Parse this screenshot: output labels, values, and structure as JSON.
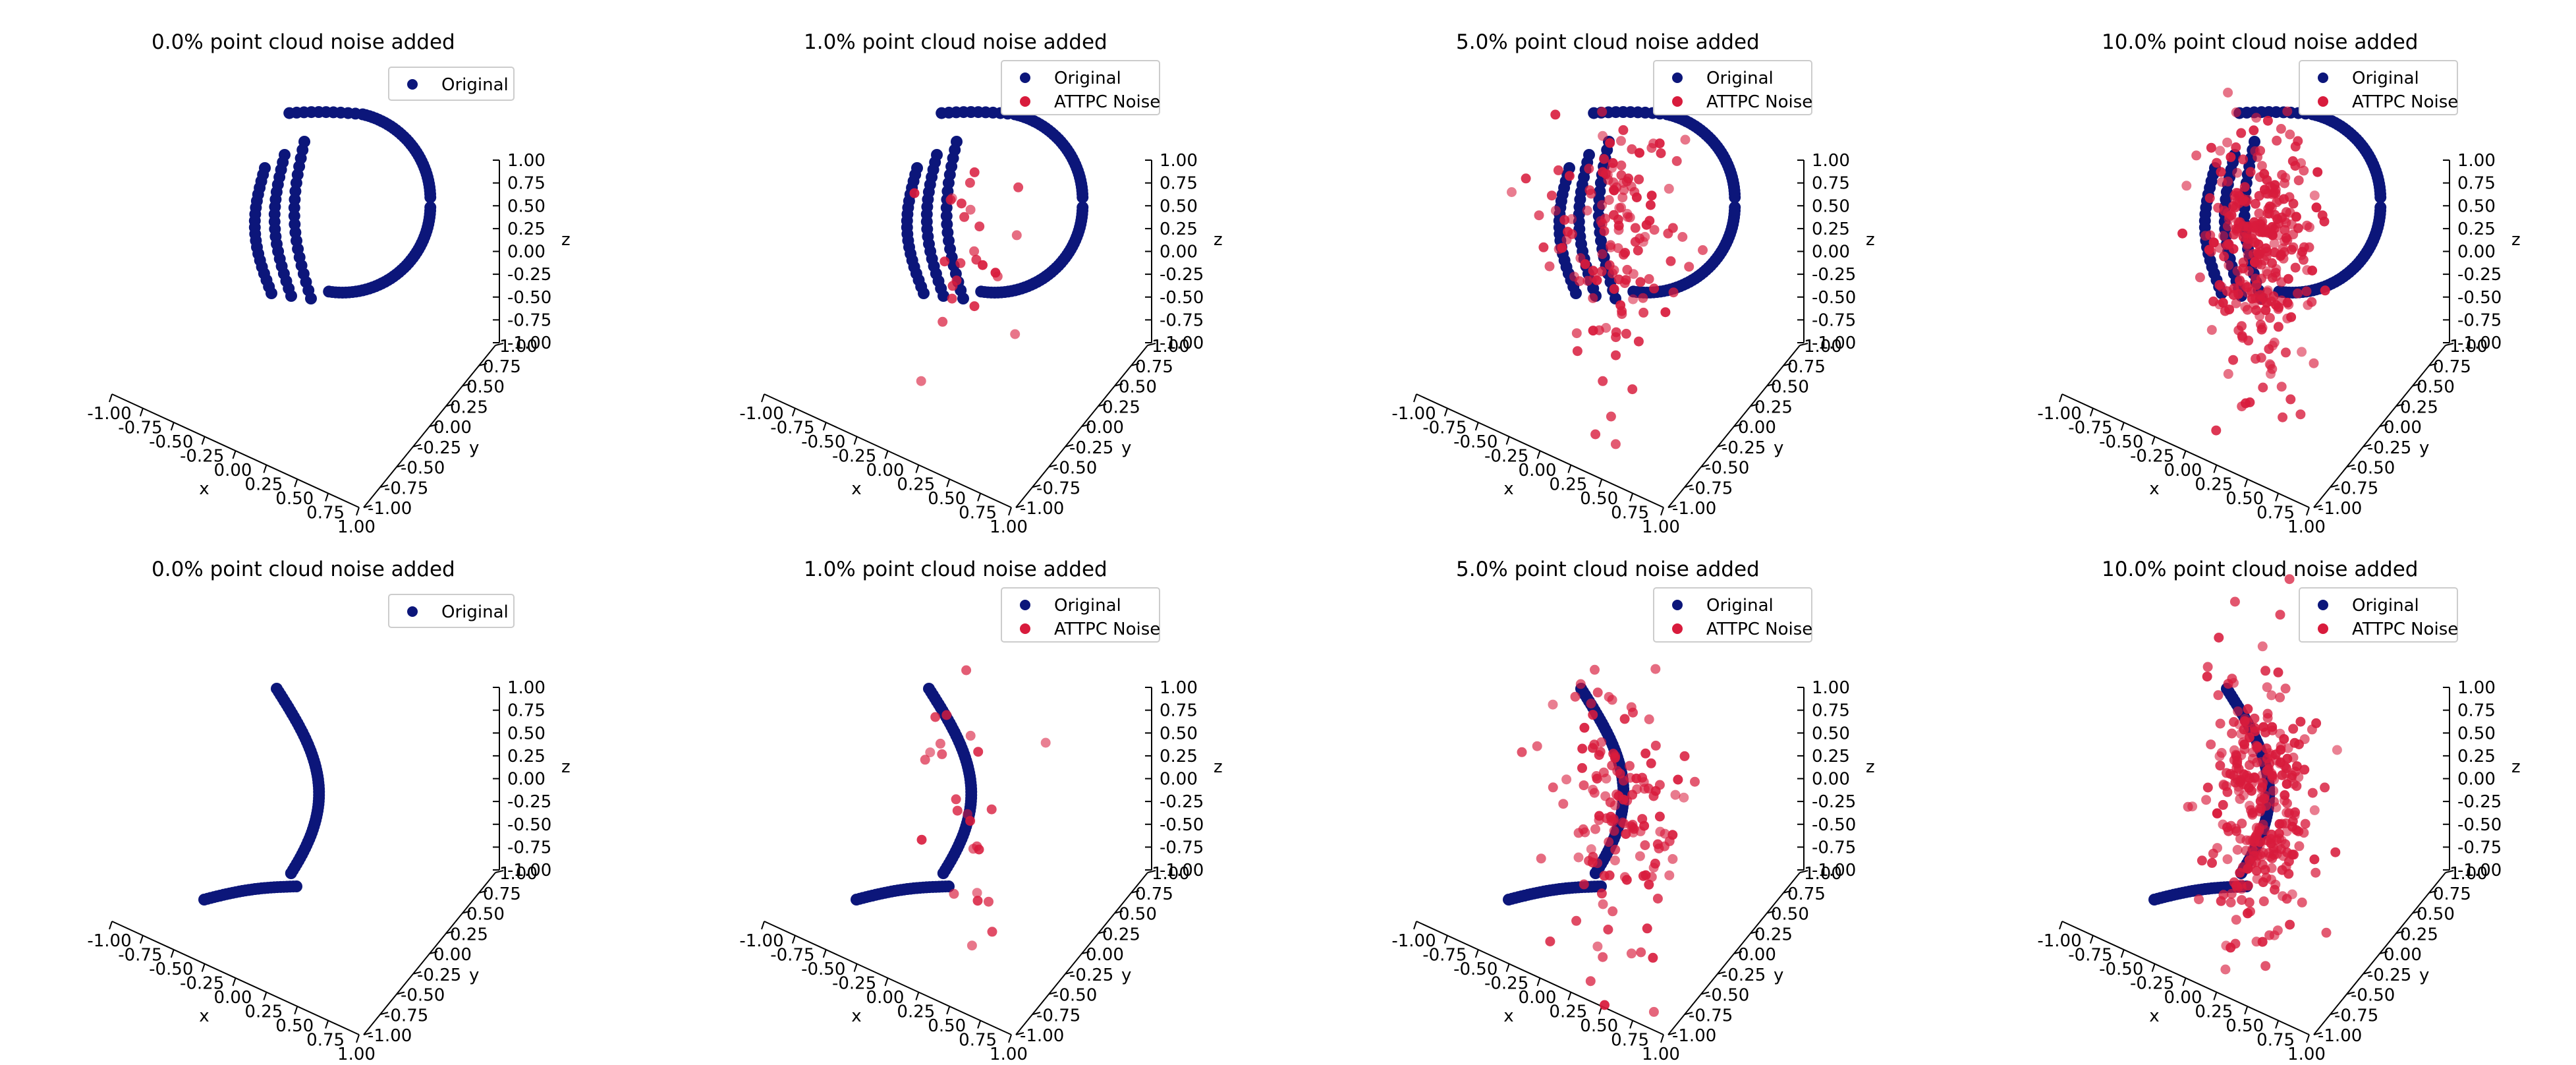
{
  "chart_data": [
    {
      "type": "scatter3d",
      "title": "0.0% point cloud noise added",
      "xlabel": "x",
      "ylabel": "y",
      "zlabel": "z",
      "xlim": [
        -1,
        1
      ],
      "ylim": [
        -1,
        1
      ],
      "zlim": [
        -1,
        1
      ],
      "ticks": [
        "-1.00",
        "-0.75",
        "-0.50",
        "-0.25",
        "0.00",
        "0.25",
        "0.50",
        "0.75",
        "1.00"
      ],
      "track_shape": "loop",
      "noise_fraction": 0.0,
      "legend": [
        "Original"
      ],
      "legend_position": "upper-right",
      "series": [
        {
          "name": "Original",
          "color": "#0c167a",
          "n_points": 150
        },
        {
          "name": "ATTPC Noise",
          "color": "#d81b3c",
          "n_points": 0
        }
      ]
    },
    {
      "type": "scatter3d",
      "title": "1.0% point cloud noise added",
      "xlabel": "x",
      "ylabel": "y",
      "zlabel": "z",
      "xlim": [
        -1,
        1
      ],
      "ylim": [
        -1,
        1
      ],
      "zlim": [
        -1,
        1
      ],
      "ticks": [
        "-1.00",
        "-0.75",
        "-0.50",
        "-0.25",
        "0.00",
        "0.25",
        "0.50",
        "0.75",
        "1.00"
      ],
      "track_shape": "loop",
      "noise_fraction": 0.01,
      "legend": [
        "Original",
        "ATTPC Noise"
      ],
      "legend_position": "upper-right",
      "series": [
        {
          "name": "Original",
          "color": "#0c167a",
          "n_points": 150
        },
        {
          "name": "ATTPC Noise",
          "color": "#d81b3c",
          "n_points": 25
        }
      ]
    },
    {
      "type": "scatter3d",
      "title": "5.0% point cloud noise added",
      "xlabel": "x",
      "ylabel": "y",
      "zlabel": "z",
      "xlim": [
        -1,
        1
      ],
      "ylim": [
        -1,
        1
      ],
      "zlim": [
        -1,
        1
      ],
      "ticks": [
        "-1.00",
        "-0.75",
        "-0.50",
        "-0.25",
        "0.00",
        "0.25",
        "0.50",
        "0.75",
        "1.00"
      ],
      "track_shape": "loop",
      "noise_fraction": 0.05,
      "legend": [
        "Original",
        "ATTPC Noise"
      ],
      "legend_position": "upper-right",
      "series": [
        {
          "name": "Original",
          "color": "#0c167a",
          "n_points": 150
        },
        {
          "name": "ATTPC Noise",
          "color": "#d81b3c",
          "n_points": 140
        }
      ]
    },
    {
      "type": "scatter3d",
      "title": "10.0% point cloud noise added",
      "xlabel": "x",
      "ylabel": "y",
      "zlabel": "z",
      "xlim": [
        -1,
        1
      ],
      "ylim": [
        -1,
        1
      ],
      "zlim": [
        -1,
        1
      ],
      "ticks": [
        "-1.00",
        "-0.75",
        "-0.50",
        "-0.25",
        "0.00",
        "0.25",
        "0.50",
        "0.75",
        "1.00"
      ],
      "track_shape": "loop",
      "noise_fraction": 0.1,
      "legend": [
        "Original",
        "ATTPC Noise"
      ],
      "legend_position": "upper-right",
      "series": [
        {
          "name": "Original",
          "color": "#0c167a",
          "n_points": 150
        },
        {
          "name": "ATTPC Noise",
          "color": "#d81b3c",
          "n_points": 300
        }
      ]
    },
    {
      "type": "scatter3d",
      "title": "0.0% point cloud noise added",
      "xlabel": "x",
      "ylabel": "y",
      "zlabel": "z",
      "xlim": [
        -1,
        1
      ],
      "ylim": [
        -1,
        1
      ],
      "zlim": [
        -1,
        1
      ],
      "ticks": [
        "-1.00",
        "-0.75",
        "-0.50",
        "-0.25",
        "0.00",
        "0.25",
        "0.50",
        "0.75",
        "1.00"
      ],
      "track_shape": "arc",
      "noise_fraction": 0.0,
      "legend": [
        "Original"
      ],
      "legend_position": "upper-right",
      "series": [
        {
          "name": "Original",
          "color": "#0c167a",
          "n_points": 90
        },
        {
          "name": "ATTPC Noise",
          "color": "#d81b3c",
          "n_points": 0
        }
      ]
    },
    {
      "type": "scatter3d",
      "title": "1.0% point cloud noise added",
      "xlabel": "x",
      "ylabel": "y",
      "zlabel": "z",
      "xlim": [
        -1,
        1
      ],
      "ylim": [
        -1,
        1
      ],
      "zlim": [
        -1,
        1
      ],
      "ticks": [
        "-1.00",
        "-0.75",
        "-0.50",
        "-0.25",
        "0.00",
        "0.25",
        "0.50",
        "0.75",
        "1.00"
      ],
      "track_shape": "arc",
      "noise_fraction": 0.01,
      "legend": [
        "Original",
        "ATTPC Noise"
      ],
      "legend_position": "upper-right",
      "series": [
        {
          "name": "Original",
          "color": "#0c167a",
          "n_points": 90
        },
        {
          "name": "ATTPC Noise",
          "color": "#d81b3c",
          "n_points": 25
        }
      ]
    },
    {
      "type": "scatter3d",
      "title": "5.0% point cloud noise added",
      "xlabel": "x",
      "ylabel": "y",
      "zlabel": "z",
      "xlim": [
        -1,
        1
      ],
      "ylim": [
        -1,
        1
      ],
      "zlim": [
        -1,
        1
      ],
      "ticks": [
        "-1.00",
        "-0.75",
        "-0.50",
        "-0.25",
        "0.00",
        "0.25",
        "0.50",
        "0.75",
        "1.00"
      ],
      "track_shape": "arc",
      "noise_fraction": 0.05,
      "legend": [
        "Original",
        "ATTPC Noise"
      ],
      "legend_position": "upper-right",
      "series": [
        {
          "name": "Original",
          "color": "#0c167a",
          "n_points": 90
        },
        {
          "name": "ATTPC Noise",
          "color": "#d81b3c",
          "n_points": 140
        }
      ]
    },
    {
      "type": "scatter3d",
      "title": "10.0% point cloud noise added",
      "xlabel": "x",
      "ylabel": "y",
      "zlabel": "z",
      "xlim": [
        -1,
        1
      ],
      "ylim": [
        -1,
        1
      ],
      "zlim": [
        -1,
        1
      ],
      "ticks": [
        "-1.00",
        "-0.75",
        "-0.50",
        "-0.25",
        "0.00",
        "0.25",
        "0.50",
        "0.75",
        "1.00"
      ],
      "track_shape": "arc",
      "noise_fraction": 0.1,
      "legend": [
        "Original",
        "ATTPC Noise"
      ],
      "legend_position": "upper-right",
      "series": [
        {
          "name": "Original",
          "color": "#0c167a",
          "n_points": 90
        },
        {
          "name": "ATTPC Noise",
          "color": "#d81b3c",
          "n_points": 300
        }
      ]
    }
  ]
}
